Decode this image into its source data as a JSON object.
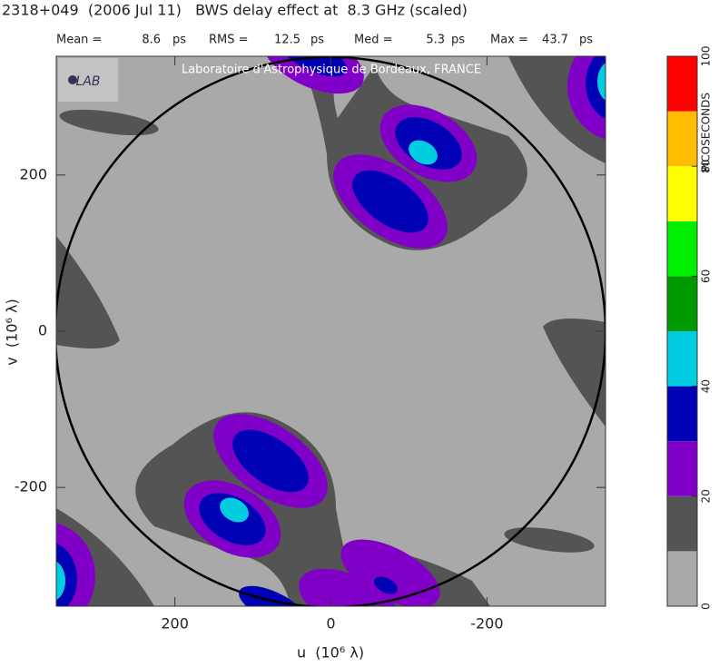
{
  "chart_data": {
    "type": "contour",
    "title": "2318+049  (2006 Jul 11)   BWS delay effect at  8.3 GHz (scaled)",
    "stats": [
      {
        "label": "Mean =",
        "value": 8.6,
        "unit": "ps"
      },
      {
        "label": "RMS =",
        "value": 12.5,
        "unit": "ps"
      },
      {
        "label": "Med =",
        "value": 5.3,
        "unit": "ps"
      },
      {
        "label": "Max =",
        "value": 43.7,
        "unit": "ps"
      }
    ],
    "annotation": "Laboratoire d'Astrophysique de Bordeaux, FRANCE",
    "xlabel": "u  (10⁶ λ)",
    "ylabel": "v  (10⁶ λ)",
    "xlim": [
      352,
      -352
    ],
    "xticks": [
      200,
      0,
      -200
    ],
    "ylim": [
      -352,
      352
    ],
    "yticks": [
      -200,
      0,
      200
    ],
    "colorbar": {
      "label": "PICOSECONDS",
      "bins": [
        0,
        10,
        20,
        30,
        40,
        50,
        60,
        70,
        80,
        90,
        100
      ],
      "colors": [
        "#a9a9a9",
        "#545454",
        "#8000c8",
        "#0000b4",
        "#00cde0",
        "#009a00",
        "#00ee00",
        "#ffff00",
        "#ffbc00",
        "#ff0000"
      ],
      "ticks": [
        0,
        20,
        40,
        60,
        80,
        100
      ]
    }
  }
}
